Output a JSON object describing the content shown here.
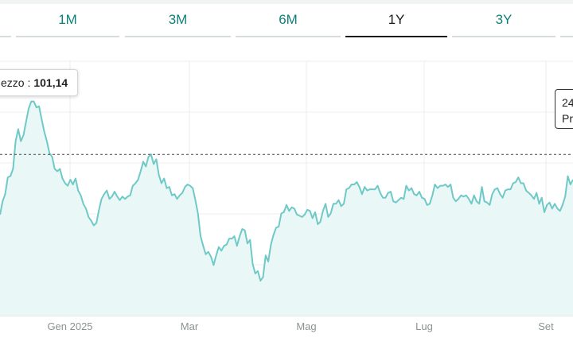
{
  "tabs": [
    {
      "label": ""
    },
    {
      "label": "1M"
    },
    {
      "label": "3M"
    },
    {
      "label": "6M"
    },
    {
      "label": "1Y",
      "active": true
    },
    {
      "label": "3Y"
    },
    {
      "label": ""
    }
  ],
  "tooltip_left": {
    "label": "ezzo :",
    "value": "101,14"
  },
  "tooltip_right": {
    "line1": "24",
    "line2": "Pr"
  },
  "colors": {
    "line": "#6fc9c7",
    "fill": "#e9f8f7",
    "accent": "#0f7f7a"
  },
  "chart_data": {
    "type": "area",
    "x_ticks": [
      "Gen 2025",
      "Mar",
      "Mag",
      "Lug",
      "Set"
    ],
    "y": [
      91.5,
      92.6,
      93.2,
      94.6,
      94.7,
      95.3,
      97.6,
      98.6,
      97.6,
      98.1,
      99.2,
      100.3,
      100.9,
      100.9,
      100.4,
      100.5,
      99.4,
      98.4,
      97.6,
      96.6,
      96.3,
      95.3,
      95.1,
      95.3,
      94.5,
      94.1,
      93.9,
      94.4,
      94.0,
      94.5,
      93.5,
      93.1,
      92.4,
      92.0,
      91.3,
      91.0,
      90.6,
      90.8,
      91.9,
      92.8,
      93.2,
      93.5,
      92.8,
      93.0,
      93.4,
      93.0,
      92.7,
      93.0,
      92.8,
      93.0,
      93.1,
      93.9,
      94.1,
      94.4,
      95.1,
      95.9,
      95.5,
      96.3,
      96.5,
      95.7,
      96.1,
      94.8,
      94.1,
      94.5,
      93.7,
      93.8,
      93.1,
      93.2,
      92.8,
      93.1,
      93.3,
      93.8,
      94.0,
      93.9,
      93.7,
      92.7,
      91.6,
      89.7,
      88.9,
      88.2,
      88.4,
      88.0,
      87.3,
      88.1,
      88.8,
      88.5,
      88.9,
      89.0,
      89.5,
      89.5,
      89.7,
      88.9,
      89.7,
      90.3,
      90.2,
      89.1,
      89.4,
      87.4,
      86.6,
      86.8,
      86.0,
      86.3,
      88.1,
      87.6,
      89.0,
      89.8,
      90.4,
      90.5,
      91.6,
      91.7,
      92.3,
      91.8,
      92.1,
      92.0,
      91.5,
      91.4,
      91.3,
      91.5,
      91.9,
      91.8,
      91.2,
      91.7,
      90.7,
      90.9,
      91.8,
      92.4,
      91.3,
      91.6,
      92.4,
      92.4,
      92.7,
      92.2,
      92.4,
      93.6,
      93.7,
      94.0,
      94.0,
      94.2,
      93.8,
      93.2,
      93.8,
      93.5,
      93.6,
      93.6,
      93.6,
      93.9,
      93.3,
      92.9,
      92.9,
      93.3,
      93.4,
      92.6,
      92.5,
      92.7,
      92.9,
      92.8,
      93.9,
      93.5,
      93.7,
      93.2,
      93.1,
      93.4,
      92.9,
      92.8,
      92.3,
      92.4,
      93.1,
      94.0,
      93.7,
      93.9,
      93.9,
      94.0,
      93.8,
      94.0,
      92.9,
      92.6,
      92.8,
      93.1,
      93.0,
      93.1,
      92.8,
      92.4,
      93.1,
      92.6,
      92.4,
      93.8,
      92.6,
      92.5,
      92.3,
      93.2,
      93.6,
      93.7,
      93.2,
      92.9,
      93.5,
      93.6,
      93.6,
      94.1,
      94.2,
      94.6,
      94.1,
      94.1,
      93.5,
      93.3,
      93.1,
      92.8,
      93.3,
      92.4,
      92.9,
      91.7,
      92.3,
      92.5,
      92.0,
      92.4,
      92.0,
      91.8,
      92.3,
      93.0,
      94.7,
      94.0,
      94.4
    ],
    "reference_line": 96.5,
    "highlight_value": 101.14
  }
}
